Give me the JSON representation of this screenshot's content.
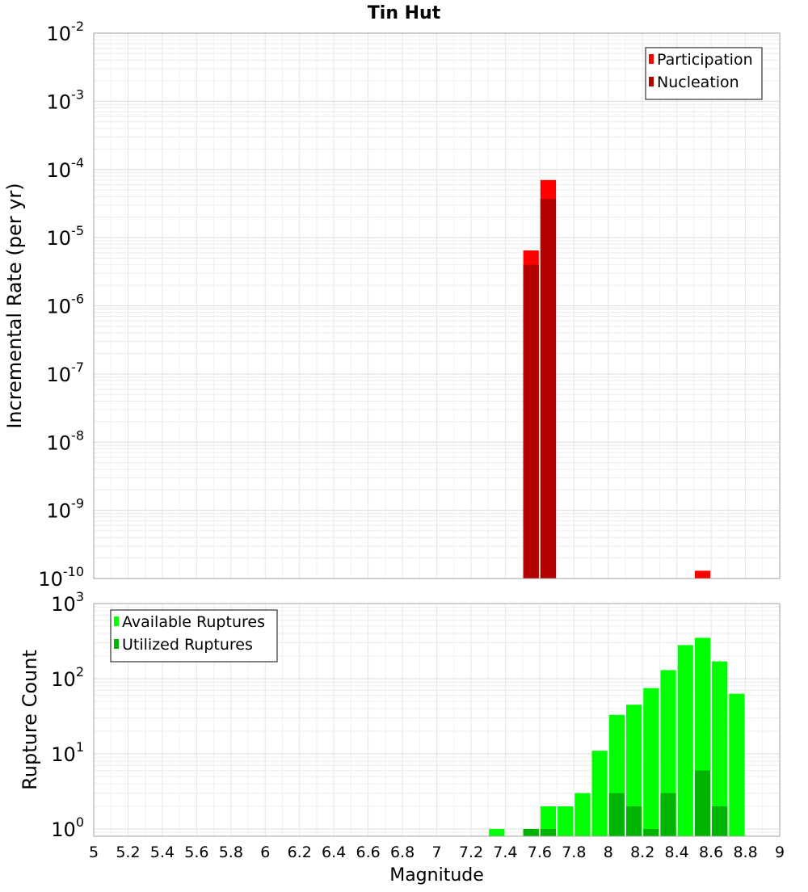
{
  "title": "Tin Hut",
  "chart_data": [
    {
      "type": "bar",
      "ylabel": "Incremental Rate (per yr)",
      "xlim": [
        5,
        9
      ],
      "ylim": [
        1e-10,
        0.01
      ],
      "y_scale": "log",
      "grid": true,
      "legend_position": "top-right",
      "y_ticks": [
        {
          "value": 0.01,
          "base": "10",
          "exp": "-2"
        },
        {
          "value": 0.001,
          "base": "10",
          "exp": "-3"
        },
        {
          "value": 0.0001,
          "base": "10",
          "exp": "-4"
        },
        {
          "value": 1e-05,
          "base": "10",
          "exp": "-5"
        },
        {
          "value": 1e-06,
          "base": "10",
          "exp": "-6"
        },
        {
          "value": 1e-07,
          "base": "10",
          "exp": "-7"
        },
        {
          "value": 1e-08,
          "base": "10",
          "exp": "-8"
        },
        {
          "value": 1e-09,
          "base": "10",
          "exp": "-9"
        },
        {
          "value": 1e-10,
          "base": "10",
          "exp": "-10"
        }
      ],
      "series": [
        {
          "name": "Participation",
          "color": "#ff0000",
          "points": [
            {
              "x": 7.55,
              "y": 6.5e-06
            },
            {
              "x": 7.65,
              "y": 7e-05
            },
            {
              "x": 8.55,
              "y": 1.3e-10
            }
          ]
        },
        {
          "name": "Nucleation",
          "color": "#b30000",
          "points": [
            {
              "x": 7.55,
              "y": 4e-06
            },
            {
              "x": 7.65,
              "y": 3.7e-05
            }
          ]
        }
      ]
    },
    {
      "type": "bar",
      "xlabel": "Magnitude",
      "ylabel": "Rupture Count",
      "xlim": [
        5,
        9
      ],
      "ylim": [
        0.8,
        1000
      ],
      "y_scale": "log",
      "grid": true,
      "legend_position": "top-left",
      "x_ticks": [
        "5",
        "5.2",
        "5.4",
        "5.6",
        "5.8",
        "6",
        "6.2",
        "6.4",
        "6.6",
        "6.8",
        "7",
        "7.2",
        "7.4",
        "7.6",
        "7.8",
        "8",
        "8.2",
        "8.4",
        "8.6",
        "8.8",
        "9"
      ],
      "y_ticks": [
        {
          "value": 1000,
          "base": "10",
          "exp": "3"
        },
        {
          "value": 100,
          "base": "10",
          "exp": "2"
        },
        {
          "value": 10,
          "base": "10",
          "exp": "1"
        },
        {
          "value": 1,
          "base": "10",
          "exp": "0"
        }
      ],
      "series": [
        {
          "name": "Available Ruptures",
          "color": "#00ff00",
          "points": [
            {
              "x": 7.35,
              "y": 1
            },
            {
              "x": 7.55,
              "y": 1
            },
            {
              "x": 7.65,
              "y": 2
            },
            {
              "x": 7.75,
              "y": 2
            },
            {
              "x": 7.85,
              "y": 3
            },
            {
              "x": 7.95,
              "y": 11
            },
            {
              "x": 8.05,
              "y": 33
            },
            {
              "x": 8.15,
              "y": 45
            },
            {
              "x": 8.25,
              "y": 75
            },
            {
              "x": 8.35,
              "y": 130
            },
            {
              "x": 8.45,
              "y": 280
            },
            {
              "x": 8.55,
              "y": 350
            },
            {
              "x": 8.65,
              "y": 170
            },
            {
              "x": 8.75,
              "y": 63
            }
          ]
        },
        {
          "name": "Utilized Ruptures",
          "color": "#00b300",
          "points": [
            {
              "x": 7.55,
              "y": 1
            },
            {
              "x": 7.65,
              "y": 1
            },
            {
              "x": 8.05,
              "y": 3
            },
            {
              "x": 8.15,
              "y": 2
            },
            {
              "x": 8.25,
              "y": 1
            },
            {
              "x": 8.35,
              "y": 3
            },
            {
              "x": 8.55,
              "y": 6
            },
            {
              "x": 8.65,
              "y": 2
            }
          ]
        }
      ]
    }
  ]
}
